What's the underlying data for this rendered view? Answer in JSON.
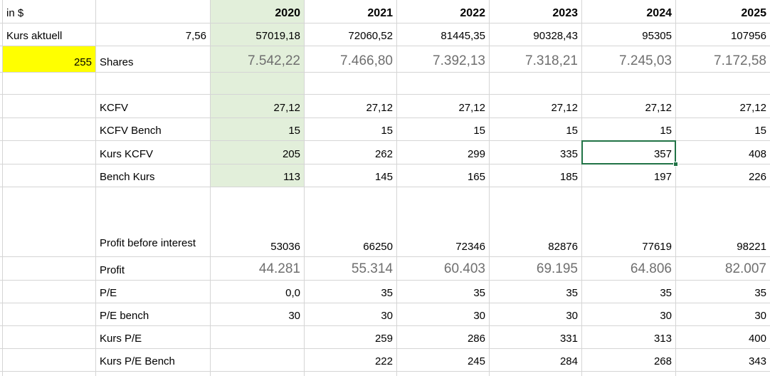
{
  "colors": {
    "grid_line": "#d5d5d5",
    "green_fill": "#e2efda",
    "yellow_fill": "#ffff00",
    "gray_value_text": "#6f6f6f",
    "selection_green": "#217346"
  },
  "sheet": {
    "years": [
      "2020",
      "2021",
      "2022",
      "2023",
      "2024",
      "2025"
    ],
    "selection": {
      "row": "Kurs KCFV",
      "column": "2024",
      "value": "357"
    },
    "rows": [
      {
        "id": "year-header",
        "a": "in $",
        "b": "",
        "values": [
          "2020",
          "2021",
          "2022",
          "2023",
          "2024",
          "2025"
        ],
        "style": "year-header"
      },
      {
        "id": "kurs-aktuell",
        "a": "Kurs aktuell",
        "b": "7,56",
        "b_align": "right",
        "values": [
          "57019,18",
          "72060,52",
          "81445,35",
          "90328,43",
          "95305",
          "107956"
        ]
      },
      {
        "id": "shares",
        "a": "255",
        "a_align": "right",
        "a_fill": "yellow",
        "b": "Shares",
        "values": [
          "7.542,22",
          "7.466,80",
          "7.392,13",
          "7.318,21",
          "7.245,03",
          "7.172,58"
        ],
        "style": "gray-large"
      },
      {
        "id": "empty-row-1",
        "a": "",
        "b": "",
        "values": [
          "",
          "",
          "",
          "",
          "",
          ""
        ]
      },
      {
        "id": "kcfv",
        "a": "",
        "b": "KCFV",
        "values": [
          "27,12",
          "27,12",
          "27,12",
          "27,12",
          "27,12",
          "27,12"
        ]
      },
      {
        "id": "kcfv-bench",
        "a": "",
        "b": "KCFV Bench",
        "values": [
          "15",
          "15",
          "15",
          "15",
          "15",
          "15"
        ]
      },
      {
        "id": "kurs-kcfv",
        "a": "",
        "b": "Kurs KCFV",
        "values": [
          "205",
          "262",
          "299",
          "335",
          "357",
          "408"
        ],
        "selected_year": "2024"
      },
      {
        "id": "bench-kurs",
        "a": "",
        "b": "Bench Kurs",
        "values": [
          "113",
          "145",
          "165",
          "185",
          "197",
          "226"
        ]
      },
      {
        "id": "profit-before-interest",
        "a": "",
        "b": "Profit before interest",
        "values": [
          "53036",
          "66250",
          "72346",
          "82876",
          "77619",
          "98221"
        ],
        "tall": true
      },
      {
        "id": "profit",
        "a": "",
        "b": "Profit",
        "values": [
          "44.281",
          "55.314",
          "60.403",
          "69.195",
          "64.806",
          "82.007"
        ],
        "style": "gray-large"
      },
      {
        "id": "pe",
        "a": "",
        "b": "P/E",
        "values": [
          "0,0",
          "35",
          "35",
          "35",
          "35",
          "35"
        ]
      },
      {
        "id": "pe-bench",
        "a": "",
        "b": "P/E bench",
        "values": [
          "30",
          "30",
          "30",
          "30",
          "30",
          "30"
        ]
      },
      {
        "id": "kurs-pe",
        "a": "",
        "b": "Kurs P/E",
        "values": [
          "",
          "259",
          "286",
          "331",
          "313",
          "400"
        ]
      },
      {
        "id": "kurs-pe-bench",
        "a": "",
        "b": "Kurs P/E Bench",
        "values": [
          "",
          "222",
          "245",
          "284",
          "268",
          "343"
        ]
      }
    ],
    "green_column_year": "2020",
    "green_fill_last_row": "bench-kurs"
  }
}
